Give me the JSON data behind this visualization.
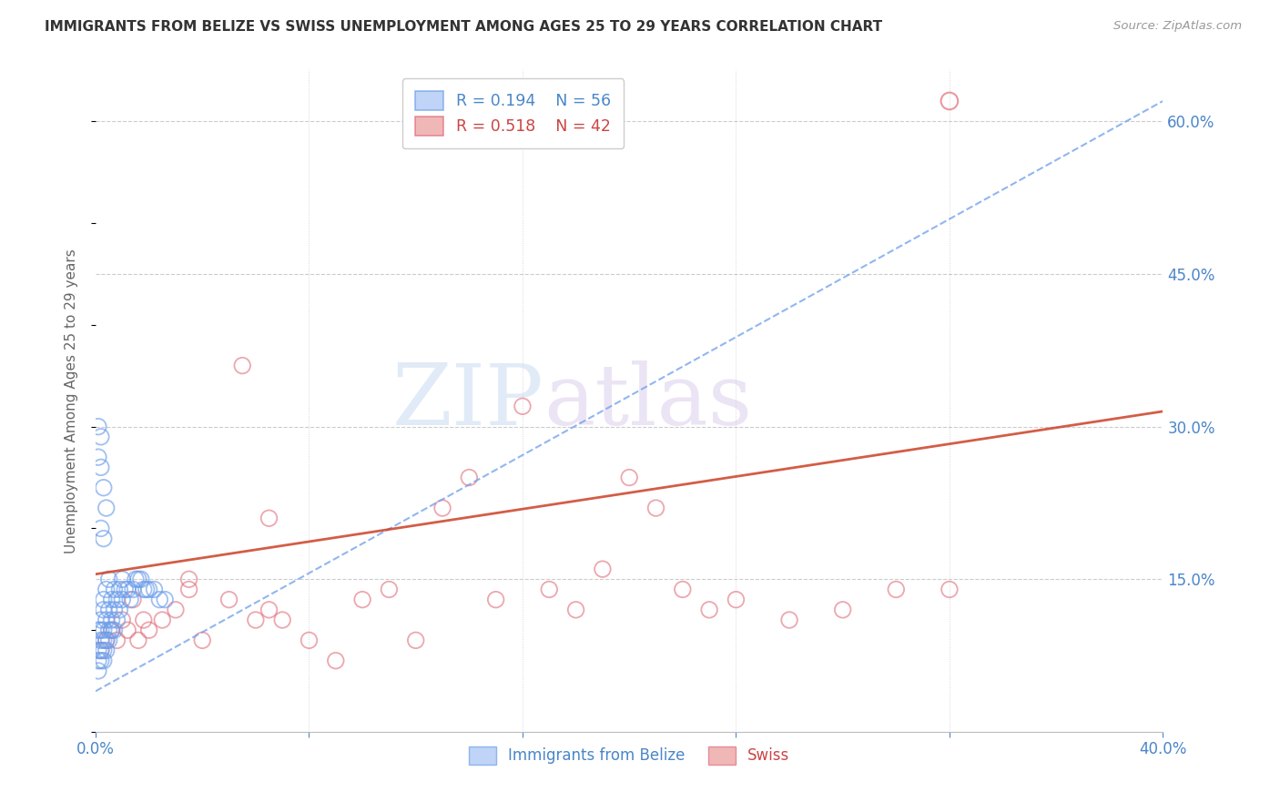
{
  "title": "IMMIGRANTS FROM BELIZE VS SWISS UNEMPLOYMENT AMONG AGES 25 TO 29 YEARS CORRELATION CHART",
  "source": "Source: ZipAtlas.com",
  "ylabel": "Unemployment Among Ages 25 to 29 years",
  "xlim": [
    0.0,
    0.4
  ],
  "ylim": [
    0.0,
    0.65
  ],
  "x_ticks": [
    0.0,
    0.08,
    0.16,
    0.24,
    0.32,
    0.4
  ],
  "x_tick_labels": [
    "0.0%",
    "",
    "",
    "",
    "",
    "40.0%"
  ],
  "y_ticks_right": [
    0.0,
    0.15,
    0.3,
    0.45,
    0.6
  ],
  "y_tick_labels_right": [
    "",
    "15.0%",
    "30.0%",
    "45.0%",
    "60.0%"
  ],
  "watermark_zip": "ZIP",
  "watermark_atlas": "atlas",
  "blue_color": "#a4c2f4",
  "blue_edge_color": "#6d9eeb",
  "pink_color": "#ea9999",
  "pink_edge_color": "#e06c7a",
  "blue_line_color": "#6d9eeb",
  "pink_line_color": "#cc4125",
  "axis_label_color": "#4a86c8",
  "title_color": "#333333",
  "belize_scatter_x": [
    0.001,
    0.001,
    0.001,
    0.001,
    0.002,
    0.002,
    0.002,
    0.002,
    0.002,
    0.003,
    0.003,
    0.003,
    0.003,
    0.003,
    0.003,
    0.004,
    0.004,
    0.004,
    0.004,
    0.005,
    0.005,
    0.005,
    0.005,
    0.006,
    0.006,
    0.006,
    0.007,
    0.007,
    0.007,
    0.008,
    0.008,
    0.009,
    0.009,
    0.01,
    0.01,
    0.011,
    0.012,
    0.013,
    0.014,
    0.015,
    0.016,
    0.017,
    0.018,
    0.019,
    0.02,
    0.022,
    0.024,
    0.026,
    0.001,
    0.002,
    0.003,
    0.004,
    0.002,
    0.003,
    0.001,
    0.002
  ],
  "belize_scatter_y": [
    0.06,
    0.07,
    0.08,
    0.1,
    0.07,
    0.08,
    0.09,
    0.1,
    0.11,
    0.07,
    0.08,
    0.09,
    0.1,
    0.12,
    0.13,
    0.08,
    0.09,
    0.11,
    0.14,
    0.09,
    0.1,
    0.12,
    0.15,
    0.1,
    0.11,
    0.13,
    0.1,
    0.12,
    0.14,
    0.11,
    0.13,
    0.12,
    0.14,
    0.13,
    0.15,
    0.14,
    0.14,
    0.13,
    0.14,
    0.15,
    0.15,
    0.15,
    0.14,
    0.14,
    0.14,
    0.14,
    0.13,
    0.13,
    0.27,
    0.26,
    0.24,
    0.22,
    0.2,
    0.19,
    0.3,
    0.29
  ],
  "swiss_scatter_x": [
    0.002,
    0.004,
    0.006,
    0.008,
    0.01,
    0.012,
    0.014,
    0.016,
    0.018,
    0.02,
    0.025,
    0.03,
    0.035,
    0.04,
    0.05,
    0.055,
    0.06,
    0.065,
    0.07,
    0.08,
    0.09,
    0.1,
    0.11,
    0.12,
    0.13,
    0.14,
    0.15,
    0.16,
    0.17,
    0.18,
    0.19,
    0.2,
    0.21,
    0.22,
    0.23,
    0.24,
    0.26,
    0.28,
    0.3,
    0.32,
    0.035,
    0.065
  ],
  "swiss_scatter_y": [
    0.08,
    0.09,
    0.1,
    0.09,
    0.11,
    0.1,
    0.13,
    0.09,
    0.11,
    0.1,
    0.11,
    0.12,
    0.14,
    0.09,
    0.13,
    0.36,
    0.11,
    0.12,
    0.11,
    0.09,
    0.07,
    0.13,
    0.14,
    0.09,
    0.22,
    0.25,
    0.13,
    0.32,
    0.14,
    0.12,
    0.16,
    0.25,
    0.22,
    0.14,
    0.12,
    0.13,
    0.11,
    0.12,
    0.14,
    0.14,
    0.15,
    0.21
  ],
  "swiss_outlier_x": [
    0.32
  ],
  "swiss_outlier_y": [
    0.62
  ],
  "belize_trend_x": [
    0.0,
    0.4
  ],
  "belize_trend_y": [
    0.04,
    0.62
  ],
  "swiss_trend_x": [
    0.0,
    0.4
  ],
  "swiss_trend_y": [
    0.155,
    0.315
  ]
}
